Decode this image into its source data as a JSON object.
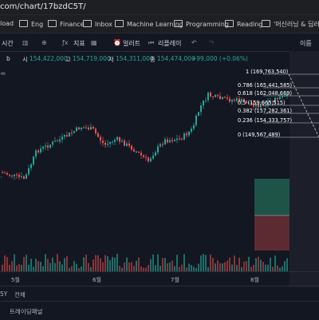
{
  "browser": {
    "url": "com/chart/17bzdC5T/",
    "bookmarks": [
      "load",
      "Eng",
      "Finance",
      "Inbox",
      "Machine Learning",
      "Programming",
      "Reading",
      "'머신러닝 & 딥러닝/딥..."
    ]
  },
  "toolbar": {
    "timeframe_label": "시간",
    "indicators_label": "지표",
    "alerts_label": "얼러트",
    "replay_label": "리플레이",
    "right_label": "이름"
  },
  "ohlc": {
    "symbol_suffix": "b",
    "open_label": "시",
    "open": "154,422,000",
    "high_label": "고",
    "high": "154,719,000",
    "low_label": "저",
    "low": "154,311,000",
    "close_label": "종",
    "close": "154,474,000",
    "change": "+99,000 (+0.06%)"
  },
  "fib_levels": [
    {
      "label": "1 (169,763,540)"
    },
    {
      "label": "0.786 (165,441,585)"
    },
    {
      "label": "0.618 (162,048,669)"
    },
    {
      "label": "0.5 (159,665,515)"
    },
    {
      "label": "0.382 (157,282,361)"
    },
    {
      "label": "0.236 (154,333,757)"
    },
    {
      "label": "0 (149,567,489)"
    }
  ],
  "xaxis": {
    "ticks": [
      "5월",
      "6월",
      "7월",
      "8월"
    ]
  },
  "range_bar": {
    "range_label": "5Y",
    "all_label": "전체"
  },
  "bottom_panel": {
    "tab_label": "트레이딩패널"
  },
  "colors": {
    "up": "#26a69a",
    "down": "#ef5350",
    "fib": "#ffffff"
  }
}
